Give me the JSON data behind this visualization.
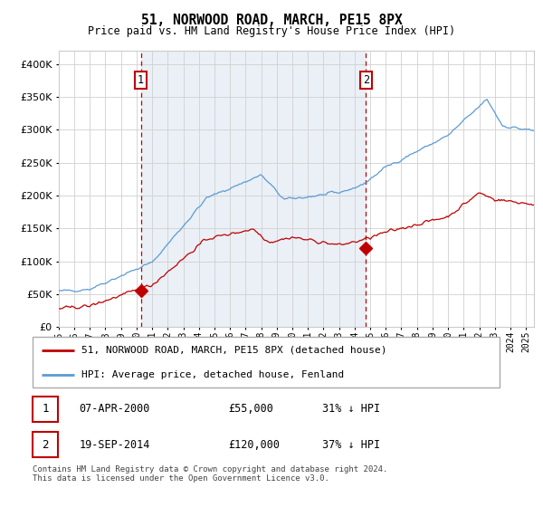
{
  "title": "51, NORWOOD ROAD, MARCH, PE15 8PX",
  "subtitle": "Price paid vs. HM Land Registry's House Price Index (HPI)",
  "legend_line1": "51, NORWOOD ROAD, MARCH, PE15 8PX (detached house)",
  "legend_line2": "HPI: Average price, detached house, Fenland",
  "sale1_date": "07-APR-2000",
  "sale1_price": "£55,000",
  "sale1_hpi": "31% ↓ HPI",
  "sale1_year": 2000.27,
  "sale1_value": 55000,
  "sale2_date": "19-SEP-2014",
  "sale2_price": "£120,000",
  "sale2_hpi": "37% ↓ HPI",
  "sale2_year": 2014.72,
  "sale2_value": 120000,
  "footnote": "Contains HM Land Registry data © Crown copyright and database right 2024.\nThis data is licensed under the Open Government Licence v3.0.",
  "hpi_color": "#5b9bd5",
  "price_color": "#c00000",
  "vline_color": "#c00000",
  "bg_shading_color": "#dce6f1",
  "grid_color": "#d0d0d0",
  "chart_bg": "#ffffff",
  "ylim": [
    0,
    420000
  ],
  "xlim_start": 1995.0,
  "xlim_end": 2025.5
}
